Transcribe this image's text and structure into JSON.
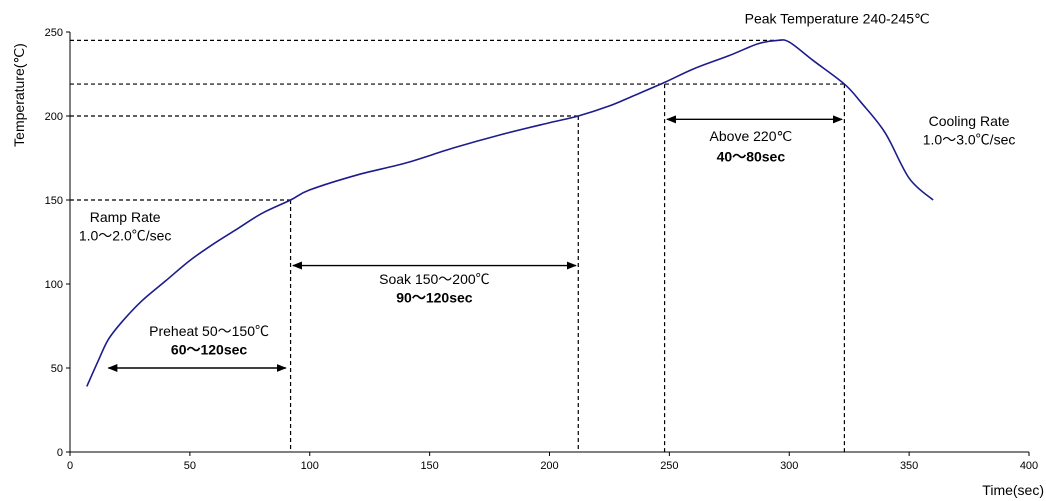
{
  "chart_data": {
    "type": "line",
    "title": "",
    "xlabel": "Time(sec)",
    "ylabel": "Temperature(℃)",
    "xlim": [
      0,
      400
    ],
    "ylim": [
      0,
      250
    ],
    "x_ticks": [
      0,
      50,
      100,
      150,
      200,
      250,
      300,
      350,
      400
    ],
    "y_ticks": [
      0,
      50,
      100,
      150,
      200,
      250
    ],
    "x_tick_labels": [
      "0",
      "50",
      "100",
      "150",
      "200",
      "250",
      "300",
      "350",
      "400"
    ],
    "y_tick_labels": [
      "0",
      "50",
      "100",
      "150",
      "200",
      "250"
    ],
    "grid": false,
    "legend": "none",
    "colors": {
      "curve": "#1c1c8c",
      "guides": "#000000"
    },
    "series": [
      {
        "x": [
          7,
          12,
          16,
          22,
          30,
          40,
          50,
          60,
          70,
          80,
          92,
          100,
          120,
          140,
          160,
          180,
          200,
          212,
          225,
          235,
          248,
          260,
          275,
          287,
          295,
          300,
          310,
          323,
          330,
          340,
          350,
          360
        ],
        "y": [
          39,
          55,
          67,
          78,
          90,
          102,
          114,
          124,
          133,
          142,
          150,
          156,
          165,
          172,
          181,
          189,
          196,
          200,
          206,
          212,
          220,
          228,
          236,
          243,
          245,
          244,
          233,
          219,
          208,
          190,
          163,
          150
        ]
      }
    ],
    "guide_lines": [
      {
        "x1": 0,
        "y1": 150,
        "x2": 92,
        "y2": 150
      },
      {
        "x1": 92,
        "y1": 150,
        "x2": 92,
        "y2": 0
      },
      {
        "x1": 0,
        "y1": 200,
        "x2": 212,
        "y2": 200
      },
      {
        "x1": 212,
        "y1": 200,
        "x2": 212,
        "y2": 0
      },
      {
        "x1": 0,
        "y1": 219,
        "x2": 323,
        "y2": 219
      },
      {
        "x1": 248,
        "y1": 219,
        "x2": 248,
        "y2": 0
      },
      {
        "x1": 323,
        "y1": 219,
        "x2": 323,
        "y2": 0
      },
      {
        "x1": 0,
        "y1": 245,
        "x2": 297,
        "y2": 245
      }
    ],
    "arrows": [
      {
        "name": "preheat-arrow",
        "x1": 16,
        "x2": 90,
        "y": 50
      },
      {
        "name": "soak-arrow",
        "x1": 93,
        "x2": 211,
        "y": 111
      },
      {
        "name": "above-220-arrow",
        "x1": 249,
        "x2": 322,
        "y": 198
      }
    ],
    "annotations": [
      {
        "name": "peak-temperature-label",
        "text": "Peak Temperature 240-245℃",
        "x": 320,
        "y": 255,
        "bold": false
      },
      {
        "name": "cooling-rate-label",
        "text": "Cooling Rate",
        "x": 375,
        "y": 194,
        "bold": false
      },
      {
        "name": "cooling-rate-value",
        "text": "1.0～3.0℃/sec",
        "x": 375,
        "y": 183,
        "bold": false
      },
      {
        "name": "above-220-label",
        "text": "Above 220℃",
        "x": 284,
        "y": 185,
        "bold": false
      },
      {
        "name": "above-220-time",
        "text": "40～80sec",
        "x": 284,
        "y": 173,
        "bold": true
      },
      {
        "name": "soak-label",
        "text": "Soak 150～200℃",
        "x": 152,
        "y": 100,
        "bold": false
      },
      {
        "name": "soak-time",
        "text": "90～120sec",
        "x": 152,
        "y": 89,
        "bold": true
      },
      {
        "name": "ramp-rate-label",
        "text": "Ramp Rate",
        "x": 23,
        "y": 137,
        "bold": false
      },
      {
        "name": "ramp-rate-value",
        "text": "1.0～2.0℃/sec",
        "x": 23,
        "y": 126,
        "bold": false
      },
      {
        "name": "preheat-label",
        "text": "Preheat 50～150℃",
        "x": 58,
        "y": 69,
        "bold": false
      },
      {
        "name": "preheat-time",
        "text": "60～120sec",
        "x": 58,
        "y": 58,
        "bold": true
      }
    ]
  }
}
